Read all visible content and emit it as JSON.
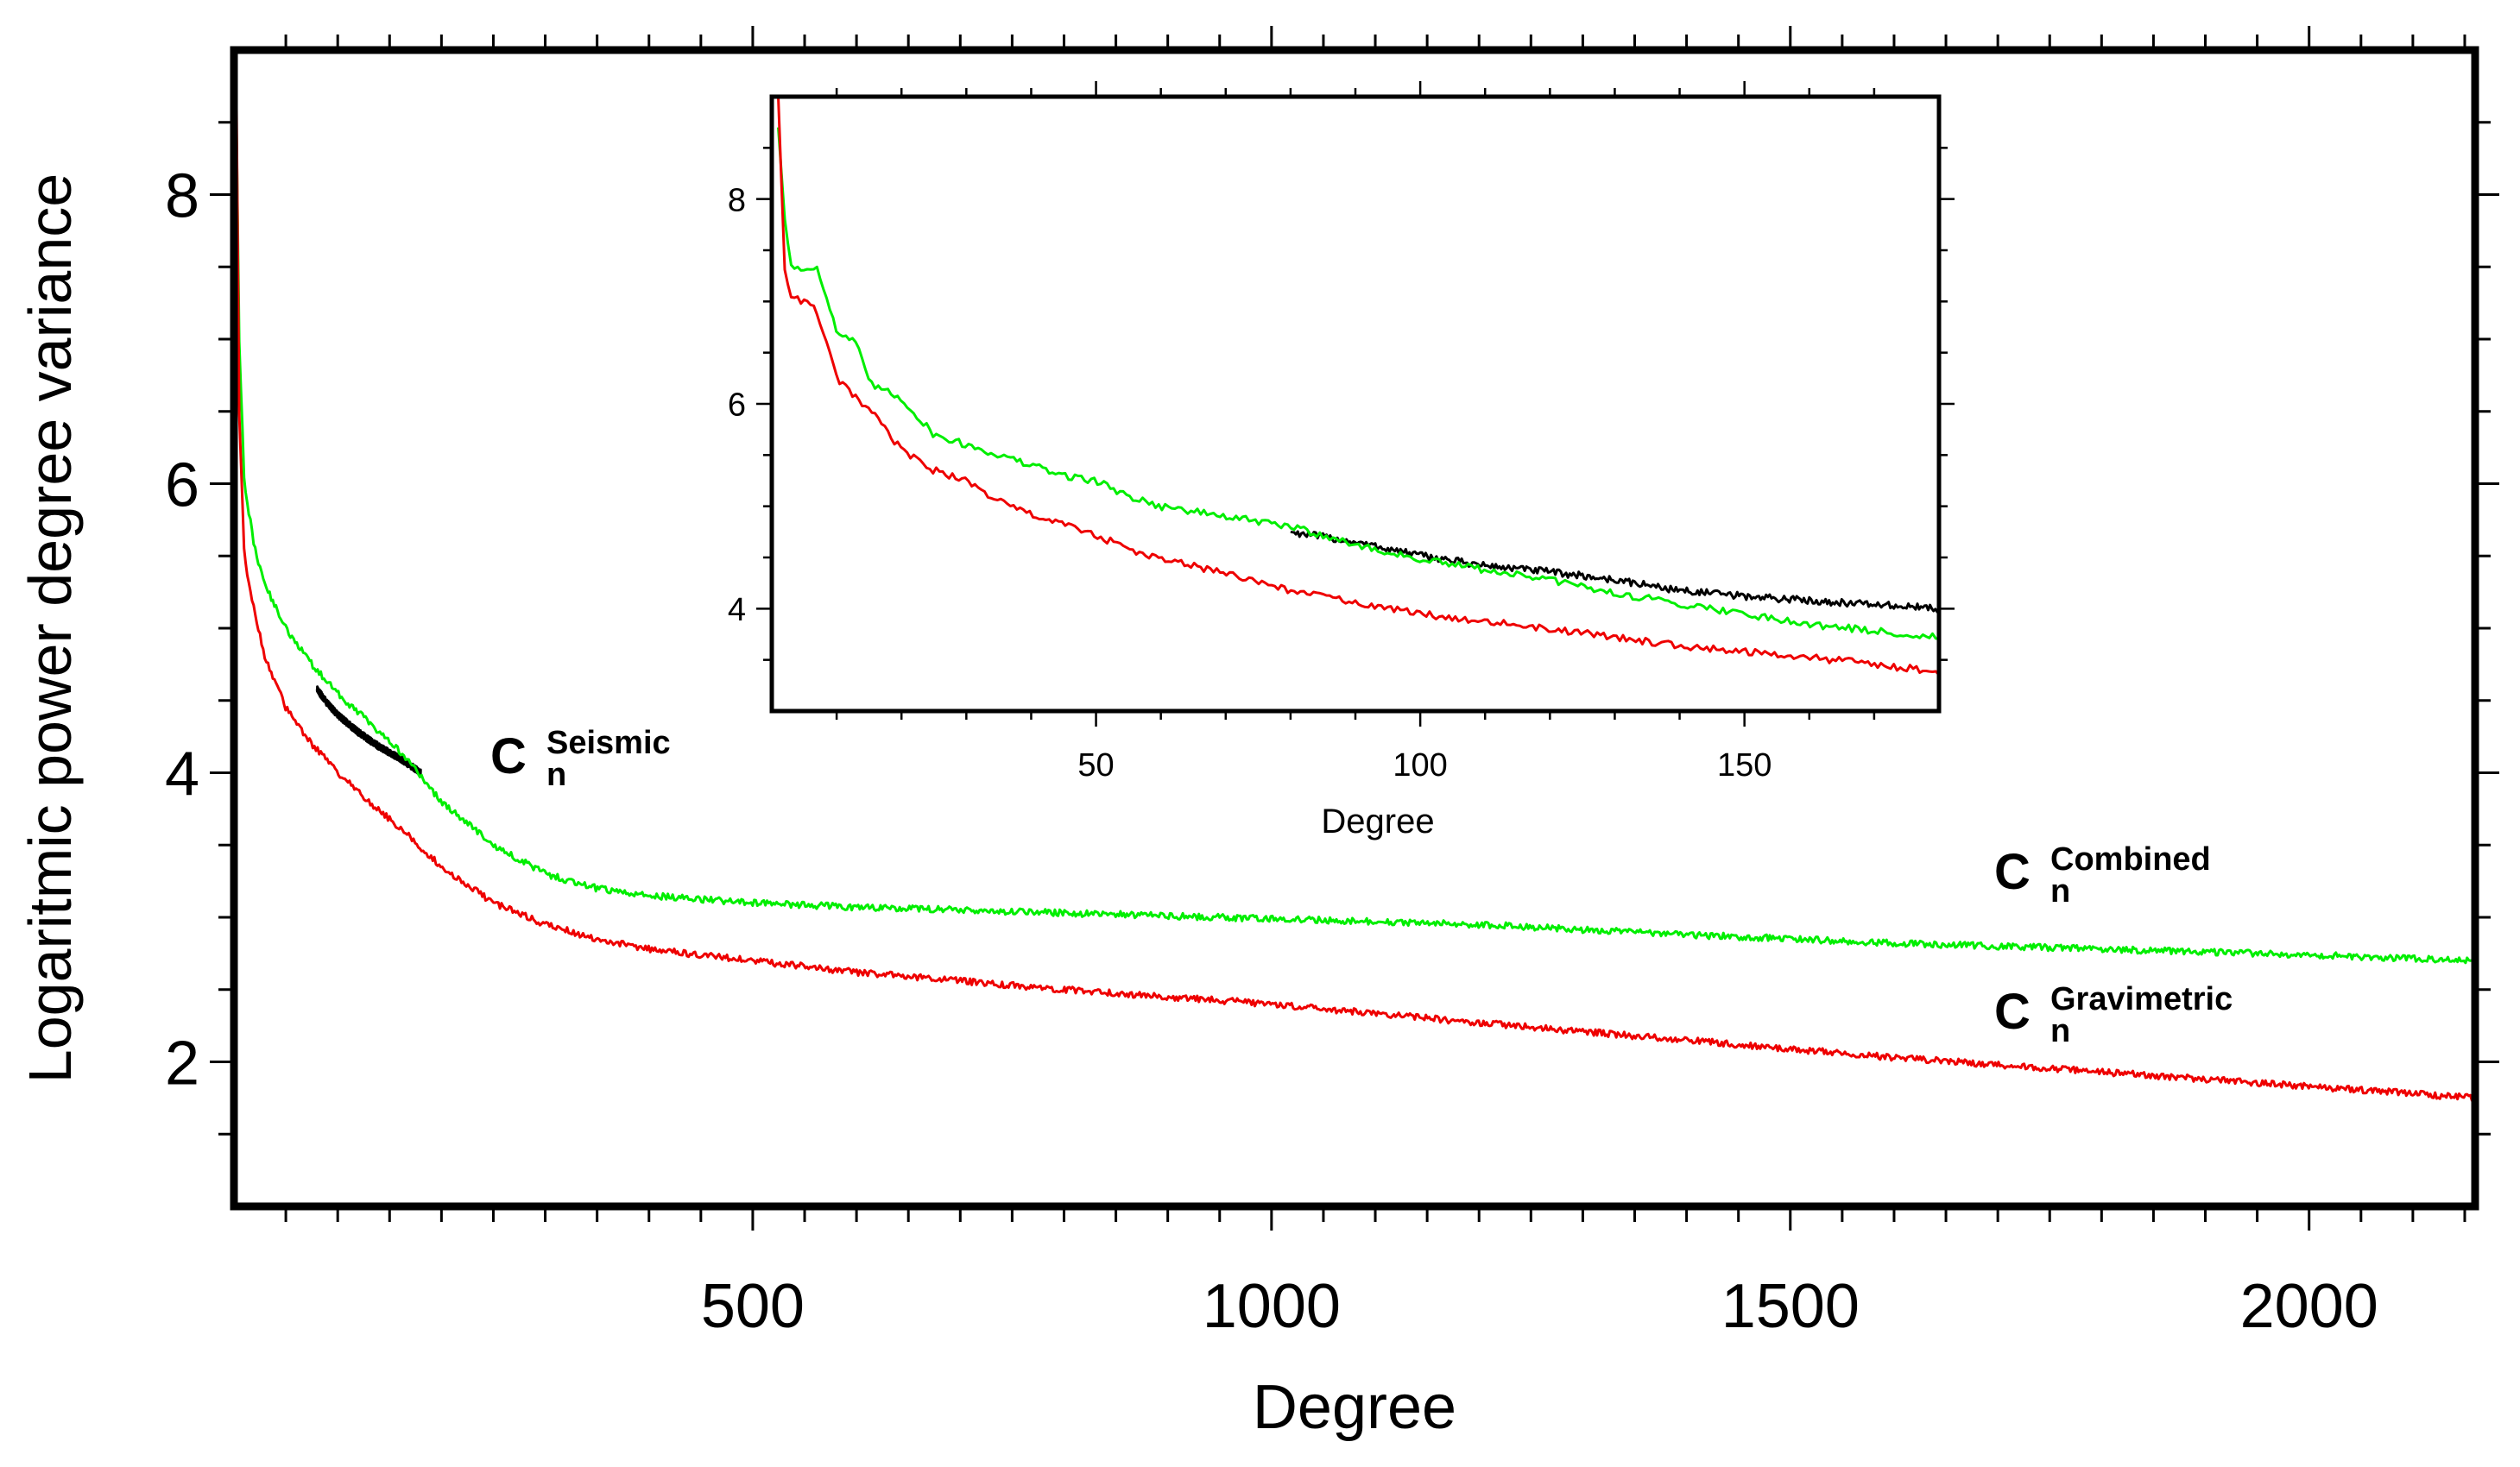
{
  "chart_data": [
    {
      "id": "main",
      "type": "line",
      "xlabel": "Degree",
      "ylabel": "Logaritmic power degree variance",
      "xlim": [
        0,
        2160
      ],
      "ylim": [
        1,
        9
      ],
      "xticks": [
        500,
        1000,
        1500,
        2000
      ],
      "yticks": [
        2,
        4,
        6,
        8
      ],
      "xminor": 50,
      "yminor": 0.5,
      "series": [
        {
          "name": "Seismic",
          "color": "#000000",
          "x": [
            80,
            90,
            100,
            120,
            140,
            160,
            180
          ],
          "y": [
            4.58,
            4.48,
            4.4,
            4.28,
            4.18,
            4.1,
            4.0
          ]
        },
        {
          "name": "Combined",
          "color": "#00ee00",
          "x": [
            2,
            5,
            10,
            20,
            30,
            50,
            75,
            100,
            130,
            160,
            200,
            250,
            300,
            350,
            400,
            500,
            600,
            700,
            800,
            900,
            1000,
            1200,
            1400,
            1600,
            1800,
            2000,
            2160
          ],
          "y": [
            8.7,
            7.0,
            6.0,
            5.55,
            5.3,
            5.0,
            4.75,
            4.55,
            4.35,
            4.15,
            3.8,
            3.5,
            3.3,
            3.2,
            3.15,
            3.1,
            3.07,
            3.05,
            3.03,
            3.01,
            2.99,
            2.95,
            2.88,
            2.82,
            2.78,
            2.74,
            2.7
          ]
        },
        {
          "name": "Gravimetric",
          "color": "#ee0000",
          "x": [
            2,
            5,
            10,
            20,
            30,
            50,
            75,
            100,
            130,
            160,
            200,
            250,
            300,
            350,
            400,
            500,
            600,
            700,
            800,
            900,
            1000,
            1200,
            1400,
            1600,
            1800,
            2000,
            2160
          ],
          "y": [
            9.0,
            6.5,
            5.5,
            5.1,
            4.8,
            4.45,
            4.2,
            4.0,
            3.8,
            3.62,
            3.35,
            3.1,
            2.95,
            2.85,
            2.78,
            2.7,
            2.62,
            2.56,
            2.5,
            2.45,
            2.4,
            2.27,
            2.15,
            2.03,
            1.93,
            1.83,
            1.75
          ]
        }
      ],
      "annotations": [
        {
          "letter": "C",
          "sub": "n",
          "sup": "Seismic"
        },
        {
          "letter": "C",
          "sub": "n",
          "sup": "Combined"
        },
        {
          "letter": "C",
          "sub": "n",
          "sup": "Gravimetric"
        }
      ]
    },
    {
      "id": "inset",
      "type": "line",
      "xlabel": "Degree",
      "ylabel": "",
      "xlim": [
        0,
        180
      ],
      "ylim": [
        3,
        9
      ],
      "xticks": [
        50,
        100,
        150
      ],
      "yticks": [
        4,
        6,
        8
      ],
      "xminor": 10,
      "yminor": 0.5,
      "series": [
        {
          "name": "Seismic",
          "color": "#000000",
          "x": [
            80,
            90,
            100,
            110,
            120,
            130,
            140,
            150,
            160,
            170,
            180
          ],
          "y": [
            4.75,
            4.65,
            4.52,
            4.42,
            4.36,
            4.28,
            4.18,
            4.12,
            4.08,
            4.04,
            4.0
          ]
        },
        {
          "name": "Combined",
          "color": "#00ee00",
          "x": [
            1,
            2,
            3,
            5,
            7,
            10,
            13,
            15,
            20,
            25,
            30,
            35,
            40,
            45,
            50,
            55,
            60,
            65,
            70,
            75,
            80,
            85,
            90,
            95,
            100,
            110,
            120,
            130,
            140,
            150,
            160,
            170,
            180
          ],
          "y": [
            8.7,
            7.8,
            7.35,
            7.3,
            7.35,
            6.7,
            6.6,
            6.2,
            6.05,
            5.7,
            5.6,
            5.5,
            5.4,
            5.3,
            5.25,
            5.1,
            5.0,
            4.95,
            4.9,
            4.85,
            4.8,
            4.72,
            4.62,
            4.55,
            4.48,
            4.38,
            4.28,
            4.15,
            4.05,
            3.95,
            3.85,
            3.78,
            3.72
          ]
        },
        {
          "name": "Gravimetric",
          "color": "#ee0000",
          "x": [
            1,
            2,
            3,
            5,
            7,
            10,
            13,
            15,
            20,
            25,
            30,
            35,
            40,
            45,
            50,
            55,
            60,
            65,
            70,
            75,
            80,
            85,
            90,
            95,
            100,
            110,
            120,
            130,
            140,
            150,
            160,
            170,
            180
          ],
          "y": [
            9.0,
            7.3,
            7.05,
            7.0,
            6.9,
            6.25,
            6.05,
            5.95,
            5.55,
            5.35,
            5.25,
            5.05,
            4.92,
            4.82,
            4.72,
            4.58,
            4.48,
            4.42,
            4.34,
            4.26,
            4.18,
            4.12,
            4.06,
            4.0,
            3.95,
            3.88,
            3.8,
            3.72,
            3.64,
            3.58,
            3.52,
            3.46,
            3.38
          ]
        }
      ]
    }
  ]
}
